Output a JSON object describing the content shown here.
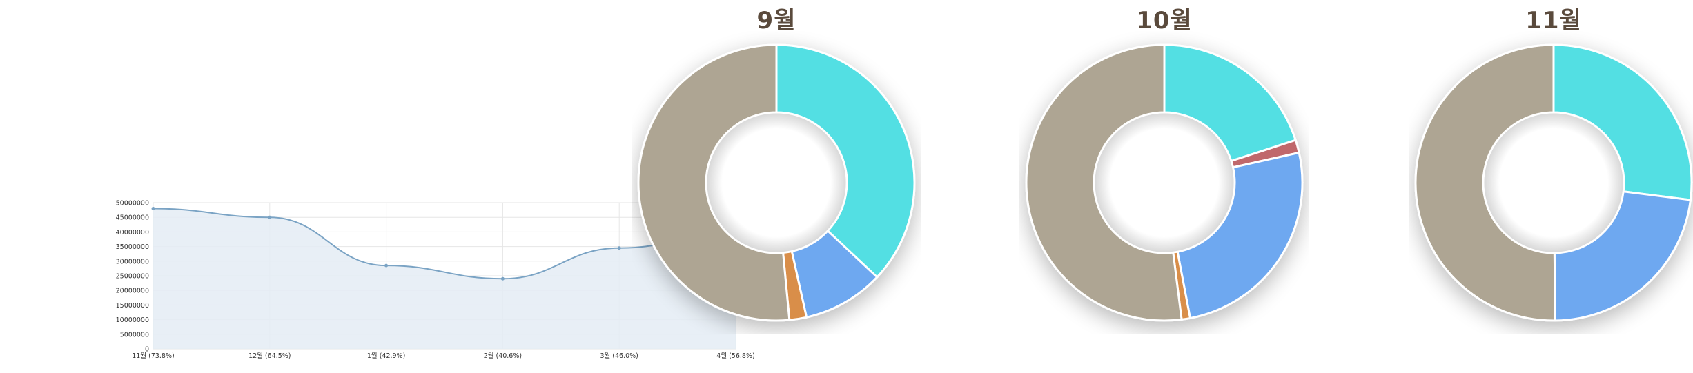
{
  "chart_data": [
    {
      "type": "line",
      "categories": [
        "11월 (73.8%)",
        "12월 (64.5%)",
        "1월 (42.9%)",
        "2월 (40.6%)",
        "3월 (46.0%)",
        "4월 (56.8%)"
      ],
      "values": [
        48000000,
        45000000,
        28500000,
        24000000,
        34500000,
        40000000
      ],
      "ylim": [
        0,
        50000000
      ],
      "yticks": [
        "0",
        "5000000",
        "10000000",
        "15000000",
        "20000000",
        "25000000",
        "30000000",
        "35000000",
        "40000000",
        "45000000",
        "50000000"
      ],
      "grid": true,
      "colors": {
        "line": "#7aa3c4",
        "fill": "#e4ecf4"
      }
    },
    {
      "type": "pie",
      "title": "9월",
      "slices": [
        {
          "value": 37,
          "color": "#52dfe3"
        },
        {
          "value": 9.5,
          "color": "#6ea8f0"
        },
        {
          "value": 2,
          "color": "#d98e4a"
        },
        {
          "value": 51.5,
          "color": "#aea593"
        }
      ]
    },
    {
      "type": "pie",
      "title": "10월",
      "slices": [
        {
          "value": 20,
          "color": "#52dfe3"
        },
        {
          "value": 1.5,
          "color": "#c0686c"
        },
        {
          "value": 25.5,
          "color": "#6ea8f0"
        },
        {
          "value": 1,
          "color": "#d98e4a"
        },
        {
          "value": 52,
          "color": "#aea593"
        }
      ]
    },
    {
      "type": "pie",
      "title": "11월",
      "slices": [
        {
          "value": 27,
          "color": "#52dfe3"
        },
        {
          "value": 22.8,
          "color": "#6ea8f0"
        },
        {
          "value": 50.2,
          "color": "#aea593"
        }
      ]
    }
  ]
}
